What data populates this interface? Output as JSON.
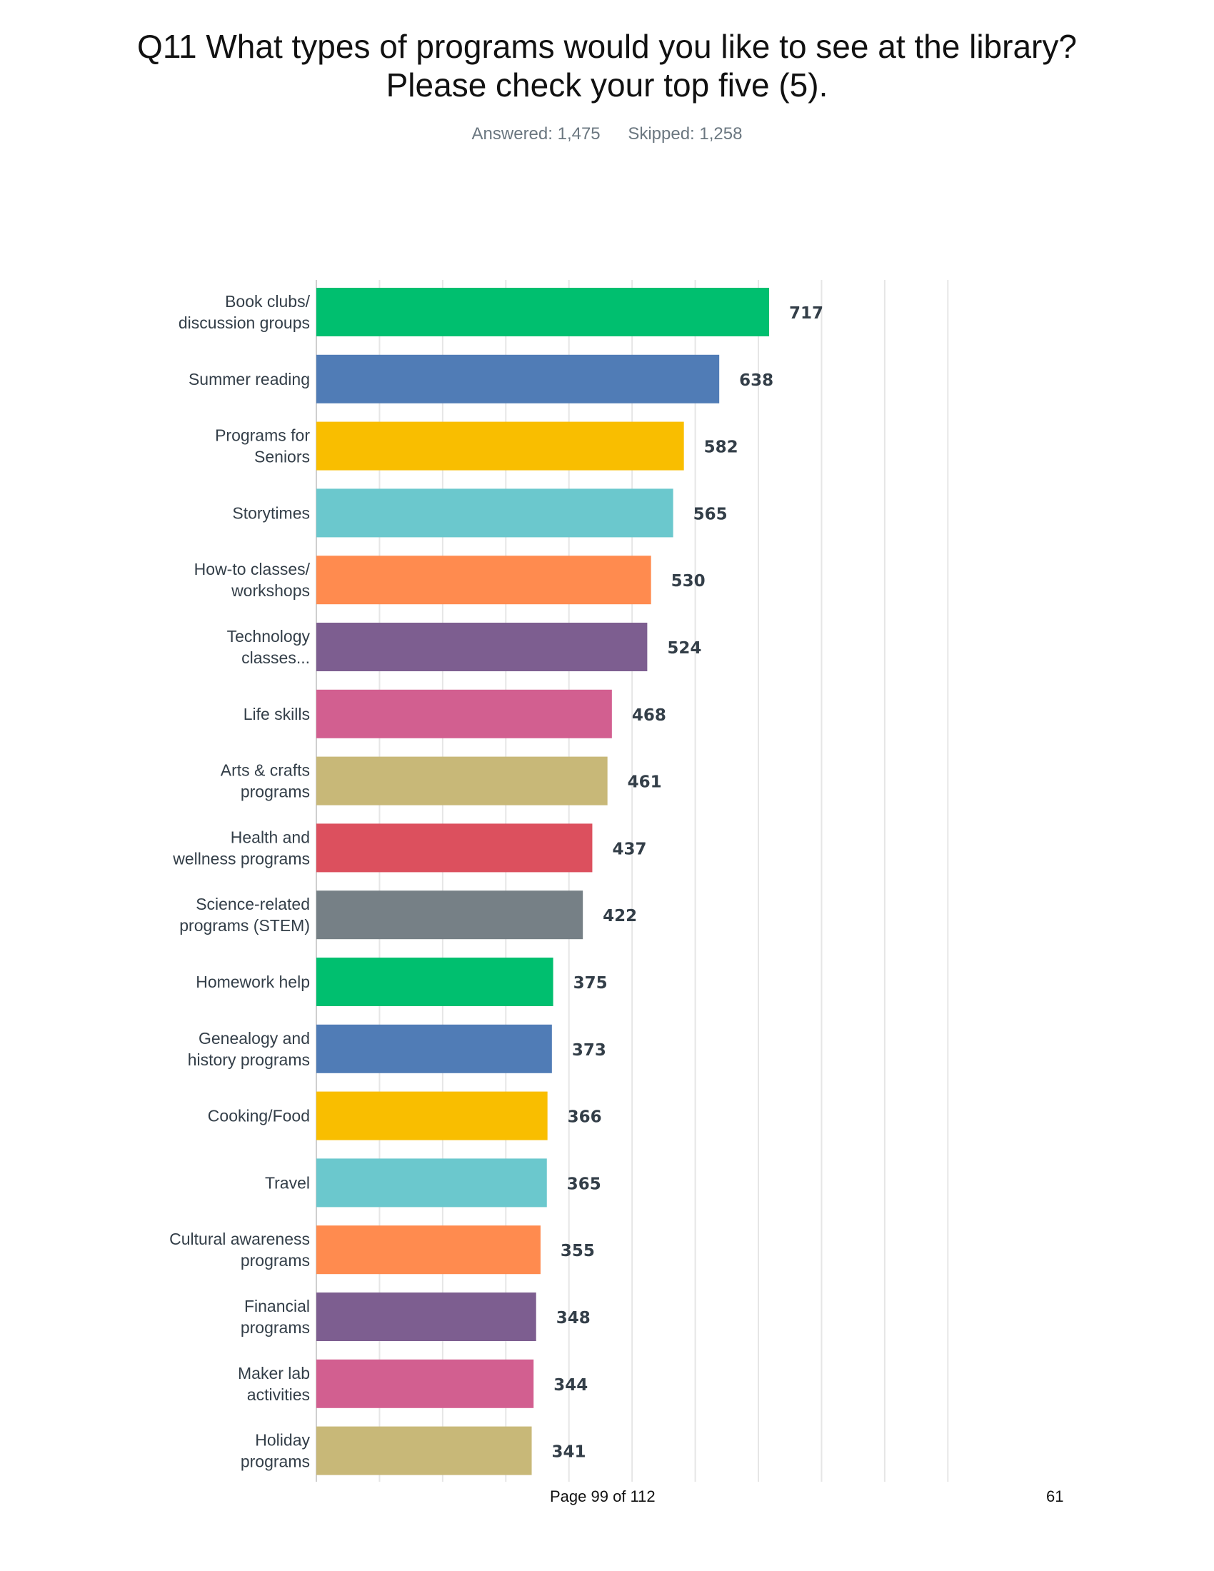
{
  "page": {
    "title_line1": "Q11 What types of programs would you like to see at the library?",
    "title_line2": "Please check your top five (5).",
    "answered": "Answered: 1,475",
    "skipped": "Skipped: 1,258",
    "footer_page": "Page 99 of 112",
    "footer_number": "61"
  },
  "chart_data": {
    "type": "bar",
    "orientation": "horizontal",
    "xlim": [
      0,
      1000
    ],
    "grid": true,
    "tick_labels_shown": false,
    "colors": [
      "#00bf6f",
      "#507cb6",
      "#f9be00",
      "#6bc8cd",
      "#ff8b4f",
      "#7d5e90",
      "#d25f90",
      "#c8b878",
      "#dc505e",
      "#768086"
    ],
    "categories": [
      [
        "Book clubs/",
        "discussion groups"
      ],
      [
        "Summer reading"
      ],
      [
        "Programs for",
        "Seniors"
      ],
      [
        "Storytimes"
      ],
      [
        "How-to classes/",
        "workshops"
      ],
      [
        "Technology",
        "classes..."
      ],
      [
        "Life skills"
      ],
      [
        "Arts & crafts",
        "programs"
      ],
      [
        "Health and",
        "wellness programs"
      ],
      [
        "Science-related",
        "programs (STEM)"
      ],
      [
        "Homework help"
      ],
      [
        "Genealogy and",
        "history programs"
      ],
      [
        "Cooking/Food"
      ],
      [
        "Travel"
      ],
      [
        "Cultural awareness",
        "programs"
      ],
      [
        "Financial",
        "programs"
      ],
      [
        "Maker lab",
        "activities"
      ],
      [
        "Holiday",
        "programs"
      ]
    ],
    "values": [
      717,
      638,
      582,
      565,
      530,
      524,
      468,
      461,
      437,
      422,
      375,
      373,
      366,
      365,
      355,
      348,
      344,
      341
    ]
  }
}
